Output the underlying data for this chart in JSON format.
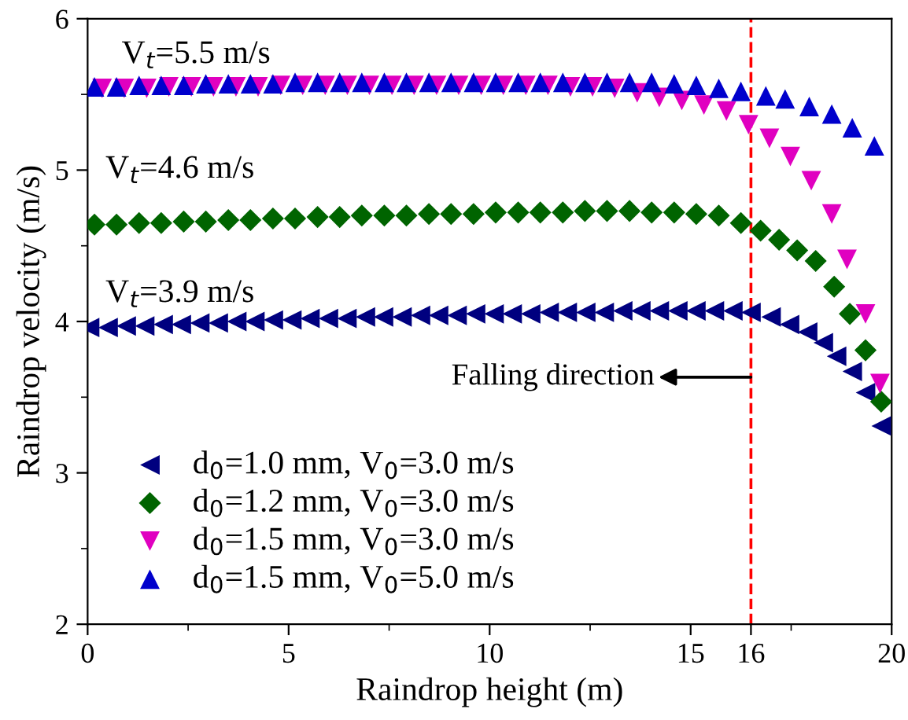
{
  "chart_data": {
    "type": "scatter",
    "xlabel": "Raindrop height (m)",
    "ylabel": "Raindrop velocity (m/s)",
    "xlim": [
      0,
      20
    ],
    "ylim": [
      2,
      6
    ],
    "xticks": [
      0,
      5,
      10,
      15,
      {
        "value": 16.5,
        "label": "16"
      },
      20
    ],
    "yticks": [
      2,
      3,
      4,
      5,
      6
    ],
    "grid": false,
    "legend": "bottom left",
    "ref_lines": [
      {
        "axis": "x",
        "value": 16.5,
        "color": "#ff0000",
        "line_style": "dashed"
      }
    ],
    "annotations": [
      "V$_{t}$=5.5 m/s",
      "V$_{t}$=4.6 m/s",
      "V$_{t}$=3.9 m/s",
      "Falling direction"
    ],
    "series": [
      {
        "name": "d$_{0}$=1.0 mm, V$_{0}$=3.0 m/s",
        "color": "#00007f",
        "marker": "triangle-left",
        "x": [
          0.05,
          0.51,
          0.96,
          1.42,
          1.88,
          2.33,
          2.79,
          3.25,
          3.71,
          4.16,
          4.62,
          5.08,
          5.53,
          5.99,
          6.45,
          6.91,
          7.36,
          7.82,
          8.28,
          8.73,
          9.19,
          9.65,
          10.11,
          10.56,
          11.02,
          11.48,
          11.93,
          12.39,
          12.85,
          13.31,
          13.76,
          14.22,
          14.68,
          15.13,
          15.59,
          16.05,
          16.5,
          17.0,
          17.46,
          17.91,
          18.3,
          18.63,
          19.02,
          19.35,
          19.74
        ],
        "values": [
          3.96,
          3.96,
          3.97,
          3.97,
          3.98,
          3.98,
          3.99,
          3.99,
          4.0,
          4.0,
          4.01,
          4.01,
          4.02,
          4.02,
          4.02,
          4.03,
          4.03,
          4.03,
          4.04,
          4.04,
          4.04,
          4.05,
          4.05,
          4.05,
          4.05,
          4.06,
          4.06,
          4.06,
          4.06,
          4.07,
          4.07,
          4.07,
          4.07,
          4.07,
          4.07,
          4.07,
          4.06,
          4.03,
          3.98,
          3.93,
          3.86,
          3.77,
          3.67,
          3.53,
          3.31
        ]
      },
      {
        "name": "d$_{0}$=1.2 mm, V$_{0}$=3.0 m/s",
        "color": "#006400",
        "marker": "diamond",
        "x": [
          0.17,
          0.72,
          1.28,
          1.83,
          2.39,
          2.94,
          3.5,
          4.05,
          4.61,
          5.16,
          5.72,
          6.27,
          6.82,
          7.38,
          7.93,
          8.49,
          9.04,
          9.6,
          10.15,
          10.71,
          11.26,
          11.82,
          12.37,
          12.92,
          13.48,
          14.03,
          14.59,
          15.14,
          15.7,
          16.25,
          16.74,
          17.2,
          17.65,
          18.11,
          18.57,
          18.96,
          19.35,
          19.74
        ],
        "values": [
          4.64,
          4.64,
          4.65,
          4.65,
          4.66,
          4.66,
          4.67,
          4.67,
          4.68,
          4.68,
          4.69,
          4.69,
          4.7,
          4.7,
          4.7,
          4.71,
          4.71,
          4.71,
          4.72,
          4.72,
          4.72,
          4.72,
          4.73,
          4.73,
          4.73,
          4.72,
          4.72,
          4.71,
          4.7,
          4.65,
          4.6,
          4.54,
          4.47,
          4.4,
          4.23,
          4.05,
          3.81,
          3.47
        ]
      },
      {
        "name": "d$_{0}$=1.5 mm, V$_{0}$=3.0 m/s",
        "color": "#e000c0",
        "marker": "triangle-down",
        "x": [
          0.36,
          0.91,
          1.47,
          2.02,
          2.58,
          3.13,
          3.69,
          4.24,
          4.8,
          5.35,
          5.91,
          6.46,
          7.01,
          7.57,
          8.12,
          8.68,
          9.23,
          9.79,
          10.34,
          10.9,
          11.45,
          12.01,
          12.56,
          13.11,
          13.67,
          14.22,
          14.78,
          15.33,
          15.89,
          16.44,
          16.96,
          17.48,
          18.0,
          18.51,
          18.89,
          19.35,
          19.71
        ],
        "values": [
          5.54,
          5.54,
          5.54,
          5.55,
          5.55,
          5.55,
          5.55,
          5.55,
          5.56,
          5.56,
          5.56,
          5.56,
          5.56,
          5.56,
          5.56,
          5.56,
          5.56,
          5.56,
          5.56,
          5.56,
          5.56,
          5.55,
          5.55,
          5.54,
          5.51,
          5.48,
          5.46,
          5.43,
          5.39,
          5.3,
          5.21,
          5.09,
          4.93,
          4.71,
          4.41,
          4.05,
          3.59
        ]
      },
      {
        "name": "d$_{0}$=1.5 mm, V$_{0}$=5.0 m/s",
        "color": "#0000cc",
        "marker": "triangle",
        "x": [
          0.17,
          0.72,
          1.28,
          1.83,
          2.39,
          2.94,
          3.5,
          4.05,
          4.61,
          5.16,
          5.72,
          6.27,
          6.82,
          7.38,
          7.93,
          8.49,
          9.04,
          9.6,
          10.15,
          10.71,
          11.26,
          11.82,
          12.37,
          12.92,
          13.48,
          14.03,
          14.59,
          15.14,
          15.7,
          16.25,
          16.87,
          17.35,
          17.95,
          18.51,
          19.02,
          19.57
        ],
        "values": [
          5.55,
          5.55,
          5.56,
          5.56,
          5.56,
          5.57,
          5.57,
          5.57,
          5.57,
          5.58,
          5.58,
          5.58,
          5.58,
          5.58,
          5.58,
          5.58,
          5.58,
          5.58,
          5.58,
          5.58,
          5.58,
          5.58,
          5.58,
          5.58,
          5.58,
          5.58,
          5.57,
          5.56,
          5.54,
          5.52,
          5.49,
          5.47,
          5.42,
          5.37,
          5.28,
          5.16
        ]
      }
    ]
  }
}
